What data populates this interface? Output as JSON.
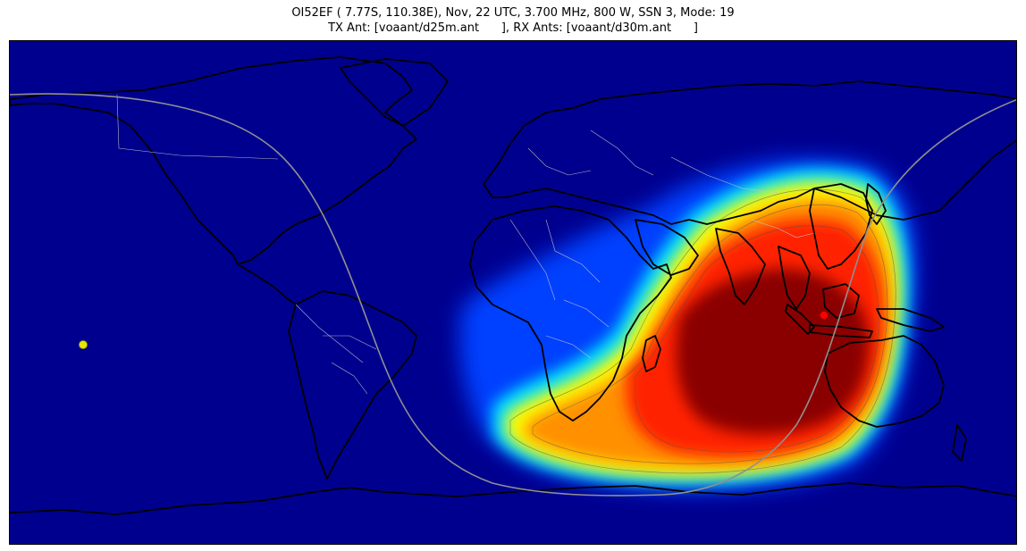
{
  "title": {
    "line1": "OI52EF ( 7.77S, 110.38E), Nov, 22 UTC, 3.700 MHz, 800 W, SSN 3, Mode: 19",
    "line2": "TX Ant: [voaant/d25m.ant      ], RX Ants: [voaant/d30m.ant      ]"
  },
  "map": {
    "projection": "equirectangular",
    "transmitter": {
      "lat": -7.77,
      "lon": 110.38,
      "color": "#ff0000"
    },
    "subsolar_point": {
      "color": "#e6e600"
    },
    "colors": {
      "background": "#00008f",
      "coast": "#000000",
      "borders": "#c8c8c8",
      "terminator": "#909090"
    }
  }
}
